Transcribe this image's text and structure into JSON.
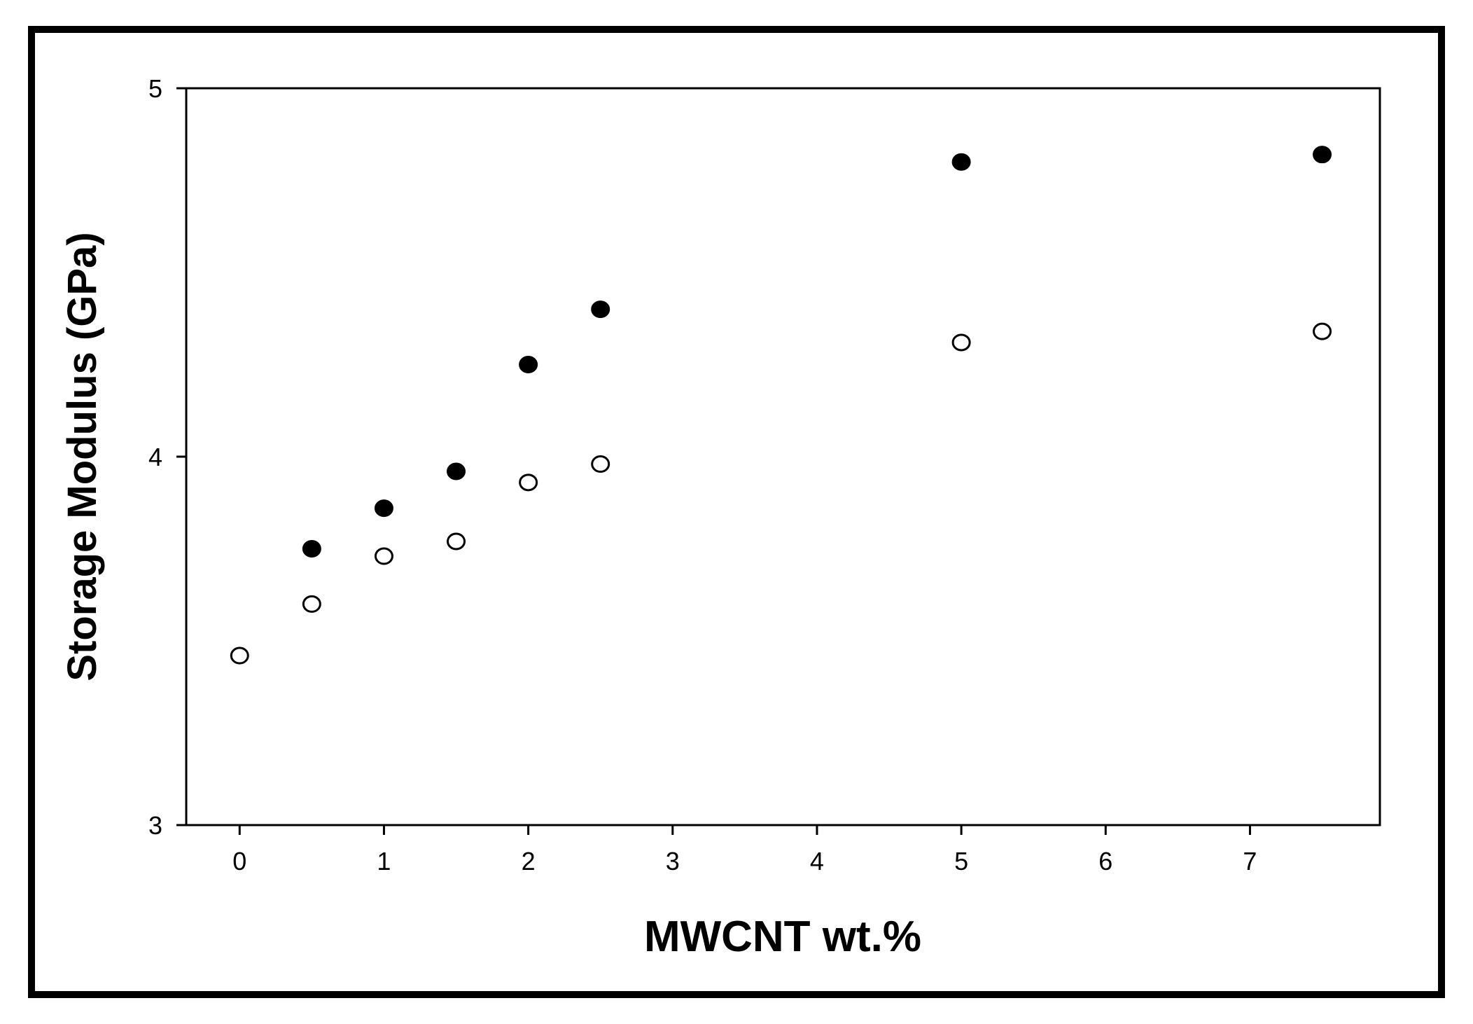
{
  "chart_data": {
    "type": "scatter",
    "xlabel": "MWCNT wt.%",
    "ylabel": "Storage Modulus (GPa)",
    "xlim": [
      -0.37,
      7.9
    ],
    "ylim": [
      3,
      5
    ],
    "x_ticks": [
      0,
      1,
      2,
      3,
      4,
      5,
      6,
      7
    ],
    "y_ticks": [
      3,
      4,
      5
    ],
    "grid": false,
    "series": [
      {
        "marker": "filled-circle",
        "color": "#000000",
        "x": [
          0.5,
          1,
          1.5,
          2,
          2.5,
          5,
          7.5
        ],
        "y": [
          3.75,
          3.86,
          3.96,
          4.25,
          4.4,
          4.8,
          4.82
        ]
      },
      {
        "marker": "open-circle",
        "color": "#000000",
        "x": [
          0,
          0.5,
          1,
          1.5,
          2,
          2.5,
          5,
          7.5
        ],
        "y": [
          3.46,
          3.6,
          3.73,
          3.77,
          3.93,
          3.98,
          4.31,
          4.34
        ]
      }
    ]
  }
}
